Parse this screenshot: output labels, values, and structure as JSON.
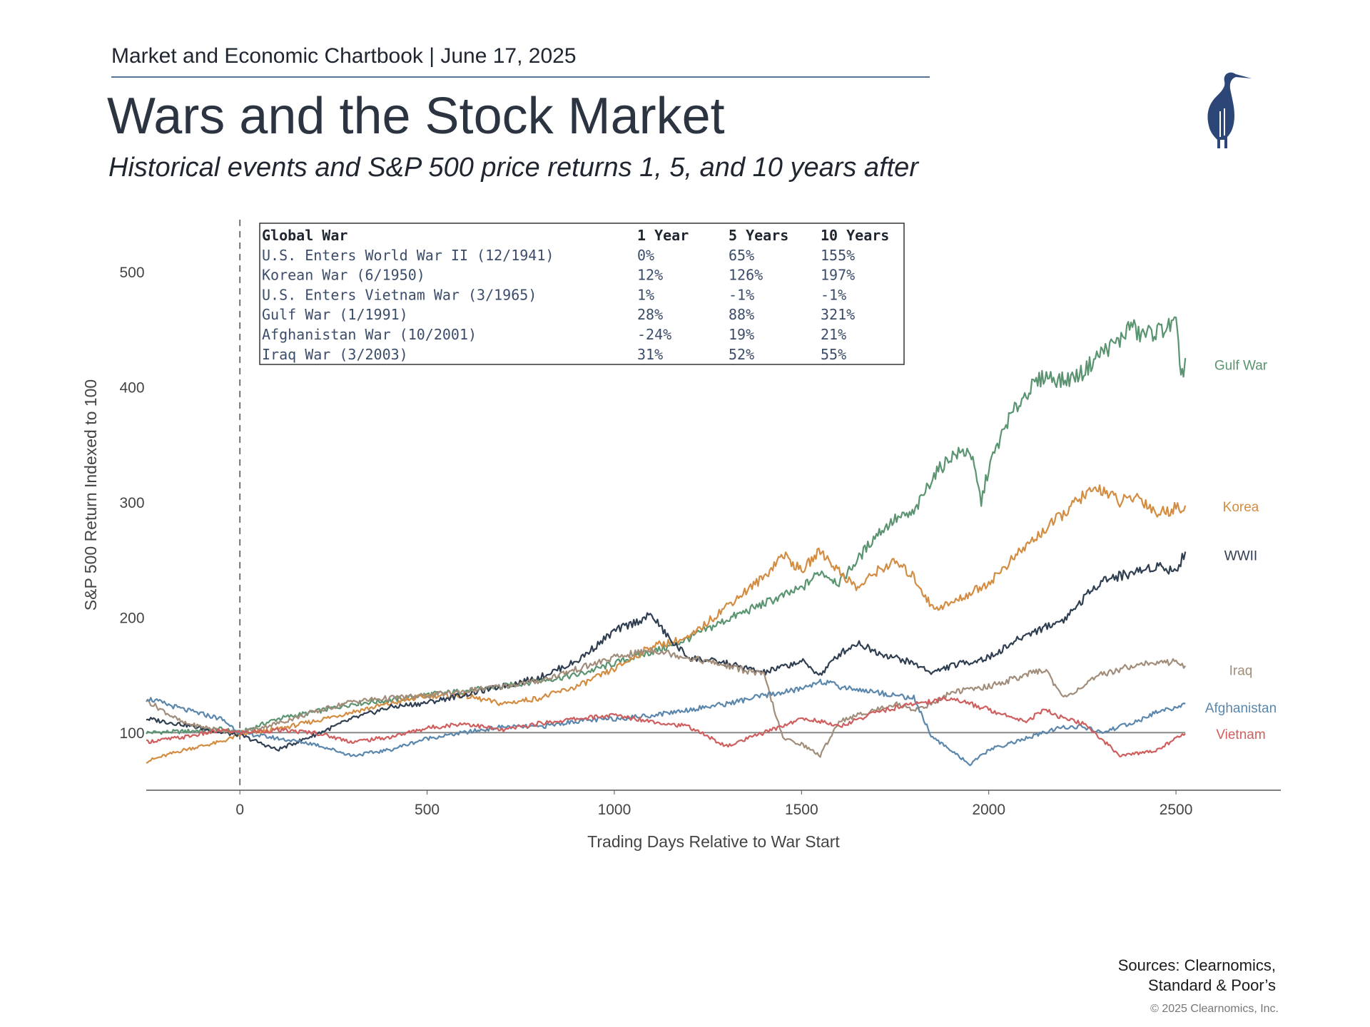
{
  "header": {
    "chartbook": "Market and Economic Chartbook | June 17, 2025",
    "title": "Wars and the Stock Market",
    "subtitle": "Historical events and S&P 500 price returns 1, 5, and 10 years after"
  },
  "logo": {
    "icon": "heron-logo-icon",
    "color": "#2b4677"
  },
  "footer": {
    "sources_line1": "Sources: Clearnomics,",
    "sources_line2": "Standard & Poor’s",
    "copyright": "© 2025 Clearnomics, Inc."
  },
  "returns_table": {
    "headers": [
      "Global War",
      "1 Year",
      "5 Years",
      "10 Years"
    ],
    "rows": [
      [
        "U.S. Enters World War II (12/1941)",
        "0%",
        "65%",
        "155%"
      ],
      [
        "Korean War (6/1950)",
        "12%",
        "126%",
        "197%"
      ],
      [
        "U.S. Enters Vietnam War (3/1965)",
        "1%",
        "-1%",
        "-1%"
      ],
      [
        "Gulf War (1/1991)",
        "28%",
        "88%",
        "321%"
      ],
      [
        "Afghanistan War (10/2001)",
        "-24%",
        "19%",
        "21%"
      ],
      [
        "Iraq War (3/2003)",
        "31%",
        "52%",
        "55%"
      ]
    ]
  },
  "chart_data": {
    "type": "line",
    "xlabel": "Trading Days Relative to War Start",
    "ylabel": "S&P 500 Return Indexed to 100",
    "xlim": [
      -250,
      2780
    ],
    "ylim": [
      50,
      550
    ],
    "xticks": [
      0,
      500,
      1000,
      1500,
      2000,
      2500
    ],
    "yticks": [
      100,
      200,
      300,
      400,
      500
    ],
    "reference_lines": {
      "y": 100,
      "x_dashed": 0
    },
    "grid": false,
    "legend": "inline labels at line ends (right)",
    "series": [
      {
        "name": "Gulf War",
        "color": "#5a9470",
        "points": [
          [
            -250,
            100
          ],
          [
            -150,
            101
          ],
          [
            -50,
            103
          ],
          [
            0,
            100
          ],
          [
            100,
            112
          ],
          [
            200,
            118
          ],
          [
            300,
            125
          ],
          [
            400,
            128
          ],
          [
            500,
            133
          ],
          [
            600,
            136
          ],
          [
            700,
            140
          ],
          [
            800,
            145
          ],
          [
            900,
            150
          ],
          [
            1000,
            160
          ],
          [
            1100,
            170
          ],
          [
            1150,
            175
          ],
          [
            1200,
            182
          ],
          [
            1300,
            198
          ],
          [
            1400,
            212
          ],
          [
            1500,
            225
          ],
          [
            1550,
            240
          ],
          [
            1600,
            230
          ],
          [
            1650,
            250
          ],
          [
            1700,
            272
          ],
          [
            1750,
            285
          ],
          [
            1800,
            290
          ],
          [
            1850,
            322
          ],
          [
            1900,
            340
          ],
          [
            1950,
            345
          ],
          [
            1980,
            300
          ],
          [
            2000,
            330
          ],
          [
            2050,
            370
          ],
          [
            2100,
            395
          ],
          [
            2150,
            410
          ],
          [
            2200,
            405
          ],
          [
            2250,
            412
          ],
          [
            2300,
            430
          ],
          [
            2350,
            440
          ],
          [
            2380,
            455
          ],
          [
            2400,
            445
          ],
          [
            2450,
            448
          ],
          [
            2500,
            455
          ],
          [
            2510,
            420
          ],
          [
            2520,
            410
          ],
          [
            2525,
            425
          ]
        ]
      },
      {
        "name": "Korea",
        "color": "#d38d42",
        "points": [
          [
            -250,
            75
          ],
          [
            -150,
            85
          ],
          [
            -50,
            92
          ],
          [
            0,
            98
          ],
          [
            100,
            103
          ],
          [
            200,
            110
          ],
          [
            300,
            118
          ],
          [
            400,
            125
          ],
          [
            500,
            132
          ],
          [
            600,
            132
          ],
          [
            700,
            125
          ],
          [
            800,
            130
          ],
          [
            900,
            140
          ],
          [
            1000,
            155
          ],
          [
            1100,
            175
          ],
          [
            1200,
            182
          ],
          [
            1300,
            210
          ],
          [
            1400,
            235
          ],
          [
            1450,
            255
          ],
          [
            1500,
            240
          ],
          [
            1550,
            258
          ],
          [
            1600,
            240
          ],
          [
            1650,
            225
          ],
          [
            1700,
            240
          ],
          [
            1750,
            248
          ],
          [
            1800,
            235
          ],
          [
            1850,
            208
          ],
          [
            1900,
            212
          ],
          [
            2000,
            230
          ],
          [
            2100,
            262
          ],
          [
            2200,
            290
          ],
          [
            2250,
            305
          ],
          [
            2300,
            312
          ],
          [
            2350,
            300
          ],
          [
            2400,
            305
          ],
          [
            2450,
            290
          ],
          [
            2500,
            295
          ],
          [
            2525,
            297
          ]
        ]
      },
      {
        "name": "WWII",
        "color": "#2f3e50",
        "points": [
          [
            -250,
            112
          ],
          [
            -150,
            107
          ],
          [
            -50,
            100
          ],
          [
            0,
            98
          ],
          [
            100,
            85
          ],
          [
            200,
            98
          ],
          [
            300,
            112
          ],
          [
            400,
            122
          ],
          [
            500,
            126
          ],
          [
            600,
            133
          ],
          [
            700,
            140
          ],
          [
            800,
            148
          ],
          [
            900,
            162
          ],
          [
            1000,
            188
          ],
          [
            1100,
            202
          ],
          [
            1150,
            180
          ],
          [
            1200,
            165
          ],
          [
            1300,
            160
          ],
          [
            1400,
            152
          ],
          [
            1500,
            162
          ],
          [
            1550,
            150
          ],
          [
            1600,
            168
          ],
          [
            1650,
            178
          ],
          [
            1700,
            170
          ],
          [
            1750,
            165
          ],
          [
            1800,
            160
          ],
          [
            1850,
            152
          ],
          [
            1900,
            158
          ],
          [
            2000,
            165
          ],
          [
            2100,
            185
          ],
          [
            2200,
            198
          ],
          [
            2250,
            215
          ],
          [
            2300,
            232
          ],
          [
            2400,
            240
          ],
          [
            2450,
            245
          ],
          [
            2500,
            240
          ],
          [
            2525,
            257
          ]
        ]
      },
      {
        "name": "Iraq",
        "color": "#a18d7a",
        "points": [
          [
            -250,
            128
          ],
          [
            -150,
            108
          ],
          [
            -50,
            102
          ],
          [
            0,
            100
          ],
          [
            100,
            108
          ],
          [
            200,
            118
          ],
          [
            300,
            127
          ],
          [
            400,
            130
          ],
          [
            500,
            132
          ],
          [
            600,
            136
          ],
          [
            700,
            140
          ],
          [
            800,
            145
          ],
          [
            900,
            155
          ],
          [
            1000,
            165
          ],
          [
            1100,
            172
          ],
          [
            1200,
            165
          ],
          [
            1300,
            158
          ],
          [
            1400,
            150
          ],
          [
            1450,
            95
          ],
          [
            1500,
            90
          ],
          [
            1550,
            80
          ],
          [
            1600,
            110
          ],
          [
            1650,
            115
          ],
          [
            1700,
            120
          ],
          [
            1750,
            125
          ],
          [
            1800,
            120
          ],
          [
            1850,
            125
          ],
          [
            1900,
            135
          ],
          [
            2000,
            140
          ],
          [
            2100,
            150
          ],
          [
            2150,
            155
          ],
          [
            2200,
            130
          ],
          [
            2250,
            140
          ],
          [
            2300,
            150
          ],
          [
            2400,
            160
          ],
          [
            2450,
            160
          ],
          [
            2500,
            162
          ],
          [
            2525,
            158
          ]
        ]
      },
      {
        "name": "Afghanistan",
        "color": "#5b87ad",
        "points": [
          [
            -250,
            130
          ],
          [
            -150,
            120
          ],
          [
            -50,
            112
          ],
          [
            0,
            100
          ],
          [
            100,
            95
          ],
          [
            200,
            90
          ],
          [
            300,
            80
          ],
          [
            400,
            85
          ],
          [
            500,
            95
          ],
          [
            600,
            100
          ],
          [
            700,
            105
          ],
          [
            800,
            105
          ],
          [
            900,
            110
          ],
          [
            1000,
            112
          ],
          [
            1100,
            115
          ],
          [
            1200,
            120
          ],
          [
            1300,
            125
          ],
          [
            1400,
            132
          ],
          [
            1500,
            138
          ],
          [
            1550,
            145
          ],
          [
            1600,
            140
          ],
          [
            1700,
            135
          ],
          [
            1800,
            130
          ],
          [
            1850,
            95
          ],
          [
            1900,
            85
          ],
          [
            1950,
            72
          ],
          [
            2000,
            85
          ],
          [
            2100,
            95
          ],
          [
            2200,
            105
          ],
          [
            2250,
            105
          ],
          [
            2300,
            100
          ],
          [
            2400,
            110
          ],
          [
            2450,
            118
          ],
          [
            2500,
            122
          ],
          [
            2525,
            125
          ]
        ]
      },
      {
        "name": "Vietnam",
        "color": "#cf5e5e",
        "points": [
          [
            -250,
            92
          ],
          [
            -150,
            96
          ],
          [
            -50,
            102
          ],
          [
            0,
            100
          ],
          [
            100,
            102
          ],
          [
            200,
            100
          ],
          [
            300,
            92
          ],
          [
            400,
            96
          ],
          [
            500,
            104
          ],
          [
            600,
            108
          ],
          [
            700,
            102
          ],
          [
            800,
            108
          ],
          [
            900,
            112
          ],
          [
            1000,
            115
          ],
          [
            1100,
            110
          ],
          [
            1200,
            105
          ],
          [
            1300,
            88
          ],
          [
            1400,
            100
          ],
          [
            1500,
            112
          ],
          [
            1550,
            110
          ],
          [
            1600,
            105
          ],
          [
            1700,
            118
          ],
          [
            1800,
            125
          ],
          [
            1900,
            130
          ],
          [
            2000,
            120
          ],
          [
            2100,
            110
          ],
          [
            2150,
            120
          ],
          [
            2200,
            112
          ],
          [
            2250,
            108
          ],
          [
            2300,
            95
          ],
          [
            2350,
            80
          ],
          [
            2400,
            82
          ],
          [
            2450,
            85
          ],
          [
            2500,
            95
          ],
          [
            2525,
            99
          ]
        ]
      }
    ]
  }
}
